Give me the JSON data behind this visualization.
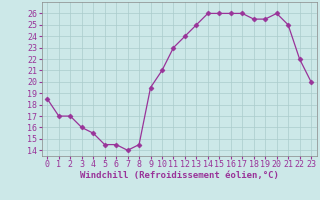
{
  "x": [
    0,
    1,
    2,
    3,
    4,
    5,
    6,
    7,
    8,
    9,
    10,
    11,
    12,
    13,
    14,
    15,
    16,
    17,
    18,
    19,
    20,
    21,
    22,
    23
  ],
  "y": [
    18.5,
    17.0,
    17.0,
    16.0,
    15.5,
    14.5,
    14.5,
    14.0,
    14.5,
    19.5,
    21.0,
    23.0,
    24.0,
    25.0,
    26.0,
    26.0,
    26.0,
    26.0,
    25.5,
    25.5,
    26.0,
    25.0,
    22.0,
    20.0
  ],
  "line_color": "#993399",
  "marker": "D",
  "marker_size": 2.5,
  "xlabel": "Windchill (Refroidissement éolien,°C)",
  "ylabel_ticks": [
    14,
    15,
    16,
    17,
    18,
    19,
    20,
    21,
    22,
    23,
    24,
    25,
    26
  ],
  "ylim": [
    13.5,
    27.0
  ],
  "xlim": [
    -0.5,
    23.5
  ],
  "background_color": "#cce8e8",
  "grid_color": "#aacccc",
  "xlabel_fontsize": 6.5,
  "tick_fontsize": 6.0,
  "tick_color": "#993399",
  "xlabel_color": "#993399"
}
